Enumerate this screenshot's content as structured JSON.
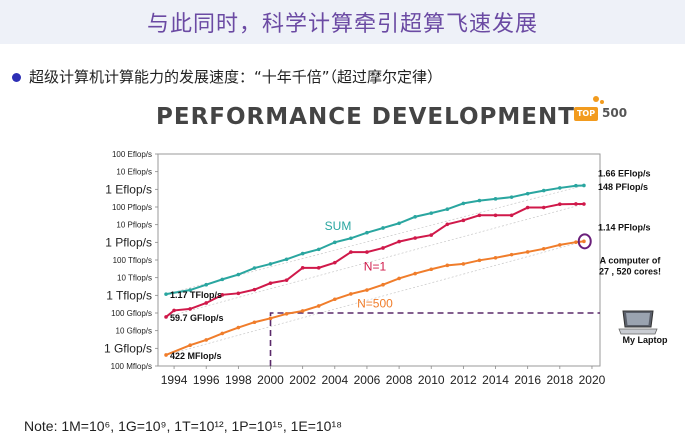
{
  "slide": {
    "title": "与此同时，科学计算牵引超算飞速发展",
    "bullet": "超级计算机计算能力的发展速度：“十年千倍”（超过摩尔定律）",
    "panel_title": "PERFORMANCE DEVELOPMENT",
    "logo_badge": "TOP",
    "logo_number": "500",
    "note_text": "Note: 1M=10⁶, 1G=10⁹, 1T=10¹², 1P=10¹⁵, 1E=10¹⁸"
  },
  "chart_data": {
    "type": "line",
    "title": "PERFORMANCE DEVELOPMENT",
    "yscale": "log",
    "y_unit": "flop/s",
    "ylim": [
      100000000.0,
      1e+20
    ],
    "xlim": [
      1993,
      2020.5
    ],
    "x_ticks": [
      1994,
      1996,
      1998,
      2000,
      2002,
      2004,
      2006,
      2008,
      2010,
      2012,
      2014,
      2016,
      2018,
      2020
    ],
    "y_ticks": [
      {
        "label": "100 Eflop/s",
        "value": 1e+20,
        "major": false
      },
      {
        "label": "10 Eflop/s",
        "value": 1e+19,
        "major": false
      },
      {
        "label": "1 Eflop/s",
        "value": 1e+18,
        "major": true
      },
      {
        "label": "100 Pflop/s",
        "value": 1e+17,
        "major": false
      },
      {
        "label": "10 Pflop/s",
        "value": 1e+16,
        "major": false
      },
      {
        "label": "1 Pflop/s",
        "value": 1000000000000000.0,
        "major": true
      },
      {
        "label": "100 Tflop/s",
        "value": 100000000000000.0,
        "major": false
      },
      {
        "label": "10 Tflop/s",
        "value": 10000000000000.0,
        "major": false
      },
      {
        "label": "1 Tflop/s",
        "value": 1000000000000.0,
        "major": true
      },
      {
        "label": "100 Gflop/s",
        "value": 100000000000.0,
        "major": false
      },
      {
        "label": "10 Gflop/s",
        "value": 10000000000.0,
        "major": false
      },
      {
        "label": "1 Gflop/s",
        "value": 1000000000.0,
        "major": true
      },
      {
        "label": "100 Mflop/s",
        "value": 100000000.0,
        "major": false
      }
    ],
    "series": [
      {
        "name": "SUM",
        "color": "#2aa6a0",
        "x": [
          1993.5,
          1995,
          1996,
          1997,
          1998,
          1999,
          2000,
          2001,
          2002,
          2003,
          2004,
          2005,
          2006,
          2007,
          2008,
          2009,
          2010,
          2011,
          2012,
          2013,
          2014,
          2015,
          2016,
          2017,
          2018,
          2019,
          2019.5
        ],
        "y": [
          1170000000000.0,
          2000000000000.0,
          4000000000000.0,
          8000000000000.0,
          15000000000000.0,
          35000000000000.0,
          60000000000000.0,
          110000000000000.0,
          230000000000000.0,
          400000000000000.0,
          1000000000000000.0,
          1700000000000000.0,
          3500000000000000.0,
          6500000000000000.0,
          1.2e+16,
          2.8e+16,
          4.5e+16,
          7.5e+16,
          1.6e+17,
          2.3e+17,
          2.9e+17,
          3.6e+17,
          5.7e+17,
          8.5e+17,
          1.2e+18,
          1.6e+18,
          1.66e+18
        ]
      },
      {
        "name": "N=1",
        "color": "#d0194a",
        "x": [
          1993.5,
          1994,
          1995,
          1996,
          1997,
          1998,
          1999,
          2000,
          2001,
          2002,
          2003,
          2004,
          2005,
          2006,
          2007,
          2008,
          2009,
          2010,
          2011,
          2012,
          2013,
          2014,
          2015,
          2016,
          2017,
          2018,
          2019,
          2019.5
        ],
        "y": [
          59700000000.0,
          140000000000.0,
          170000000000.0,
          370000000000.0,
          1070000000000.0,
          1300000000000.0,
          2100000000000.0,
          4900000000000.0,
          7200000000000.0,
          35900000000000.0,
          35900000000000.0,
          70700000000000.0,
          280000000000000.0,
          280000000000000.0,
          480000000000000.0,
          1100000000000000.0,
          1760000000000000.0,
          2570000000000000.0,
          1.05e+16,
          1.76e+16,
          3.39e+16,
          3.39e+16,
          3.39e+16,
          9.3e+16,
          9.3e+16,
          1.435e+17,
          1.486e+17,
          1.48e+17
        ]
      },
      {
        "name": "N=500",
        "color": "#f07d2b",
        "x": [
          1993.5,
          1995,
          1996,
          1997,
          1998,
          1999,
          2000,
          2001,
          2002,
          2003,
          2004,
          2005,
          2006,
          2007,
          2008,
          2009,
          2010,
          2011,
          2012,
          2013,
          2014,
          2015,
          2016,
          2017,
          2018,
          2019,
          2019.5
        ],
        "y": [
          422000000.0,
          1500000000.0,
          3000000000.0,
          7000000000.0,
          15000000000.0,
          30000000000.0,
          50000000000.0,
          90000000000.0,
          130000000000.0,
          250000000000.0,
          600000000000.0,
          1200000000000.0,
          2000000000000.0,
          4000000000000.0,
          9000000000000.0,
          17000000000000.0,
          30000000000000.0,
          50000000000000.0,
          60000000000000.0,
          96000000000000.0,
          133000000000000.0,
          200000000000000.0,
          286000000000000.0,
          430000000000000.0,
          715000000000000.0,
          1020000000000000.0,
          1140000000000000.0
        ]
      }
    ],
    "start_labels": [
      {
        "text": "1.17 TFlop/s",
        "series": "SUM",
        "x": 1993.5,
        "y": 1170000000000.0
      },
      {
        "text": "59.7 GFlop/s",
        "series": "N=1",
        "x": 1993.5,
        "y": 59700000000.0
      },
      {
        "text": "422 MFlop/s",
        "series": "N=500",
        "x": 1993.5,
        "y": 422000000.0
      }
    ],
    "end_labels": [
      {
        "text": "1.66 EFlop/s",
        "series": "SUM",
        "x": 2019.5,
        "y": 1.66e+18
      },
      {
        "text": "148 PFlop/s",
        "series": "N=1",
        "x": 2019.5,
        "y": 1.48e+17
      },
      {
        "text": "1.14 PFlop/s",
        "series": "N=500",
        "x": 2019.5,
        "y": 1140000000000000.0
      }
    ],
    "annotations": {
      "computer_note": [
        "A computer of",
        "27 , 520 cores!"
      ],
      "laptop_label": "My Laptop",
      "laptop_performance": 100000000000.0,
      "laptop_year": 2000
    }
  }
}
